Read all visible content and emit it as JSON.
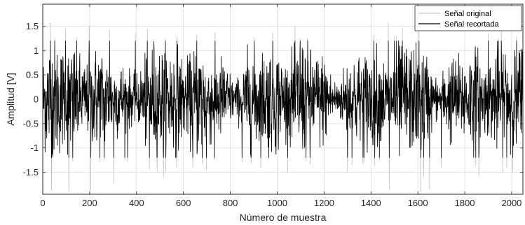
{
  "chart_data": {
    "type": "line",
    "title": "",
    "xlabel": "Número de muestra",
    "ylabel": "Amplitud [V]",
    "xlim": [
      0,
      2048
    ],
    "ylim": [
      -1.95,
      1.95
    ],
    "x_ticks": [
      0,
      200,
      400,
      600,
      800,
      1000,
      1200,
      1400,
      1600,
      1800,
      2000
    ],
    "y_ticks": [
      -1.5,
      -1,
      -0.5,
      0,
      0.5,
      1,
      1.5
    ],
    "x_tick_labels": [
      "0",
      "200",
      "400",
      "600",
      "800",
      "1000",
      "1200",
      "1400",
      "1600",
      "1800",
      "2000"
    ],
    "y_tick_labels": [
      "-1.5",
      "-1",
      "-0.5",
      "0",
      "0.5",
      "1",
      "1.5"
    ],
    "grid": true,
    "legend_position": "top-right",
    "clip_level": 1.2,
    "num_samples": 2048,
    "series": [
      {
        "name": "Señal original",
        "color": "#b8b8b8",
        "peaks": [
          {
            "x": 33,
            "y": 1.58
          },
          {
            "x": 38,
            "y": -1.88
          },
          {
            "x": 97,
            "y": 1.45
          },
          {
            "x": 111,
            "y": -1.9
          },
          {
            "x": 128,
            "y": -1.28
          },
          {
            "x": 198,
            "y": 1.5
          },
          {
            "x": 205,
            "y": -1.89
          },
          {
            "x": 262,
            "y": -1.25
          },
          {
            "x": 285,
            "y": 1.42
          },
          {
            "x": 303,
            "y": -1.72
          },
          {
            "x": 362,
            "y": -1.3
          },
          {
            "x": 395,
            "y": 1.36
          },
          {
            "x": 455,
            "y": -1.45
          },
          {
            "x": 515,
            "y": -1.6
          },
          {
            "x": 572,
            "y": 1.3
          },
          {
            "x": 640,
            "y": -1.4
          },
          {
            "x": 657,
            "y": 1.33
          },
          {
            "x": 680,
            "y": -1.32
          },
          {
            "x": 698,
            "y": -1.45
          },
          {
            "x": 732,
            "y": -1.25
          },
          {
            "x": 850,
            "y": -1.3
          },
          {
            "x": 1098,
            "y": 1.25
          },
          {
            "x": 1140,
            "y": -1.35
          },
          {
            "x": 1300,
            "y": -1.5
          },
          {
            "x": 1370,
            "y": -1.3
          },
          {
            "x": 1474,
            "y": 1.57
          },
          {
            "x": 1478,
            "y": -1.85
          },
          {
            "x": 1500,
            "y": 1.3
          },
          {
            "x": 1605,
            "y": 1.58
          },
          {
            "x": 1612,
            "y": -1.92
          },
          {
            "x": 1625,
            "y": -1.6
          },
          {
            "x": 1650,
            "y": -1.85
          },
          {
            "x": 1700,
            "y": -1.4
          },
          {
            "x": 1860,
            "y": -1.58
          },
          {
            "x": 1900,
            "y": 1.35
          }
        ]
      },
      {
        "name": "Señal recortada",
        "color": "#000000"
      }
    ]
  }
}
